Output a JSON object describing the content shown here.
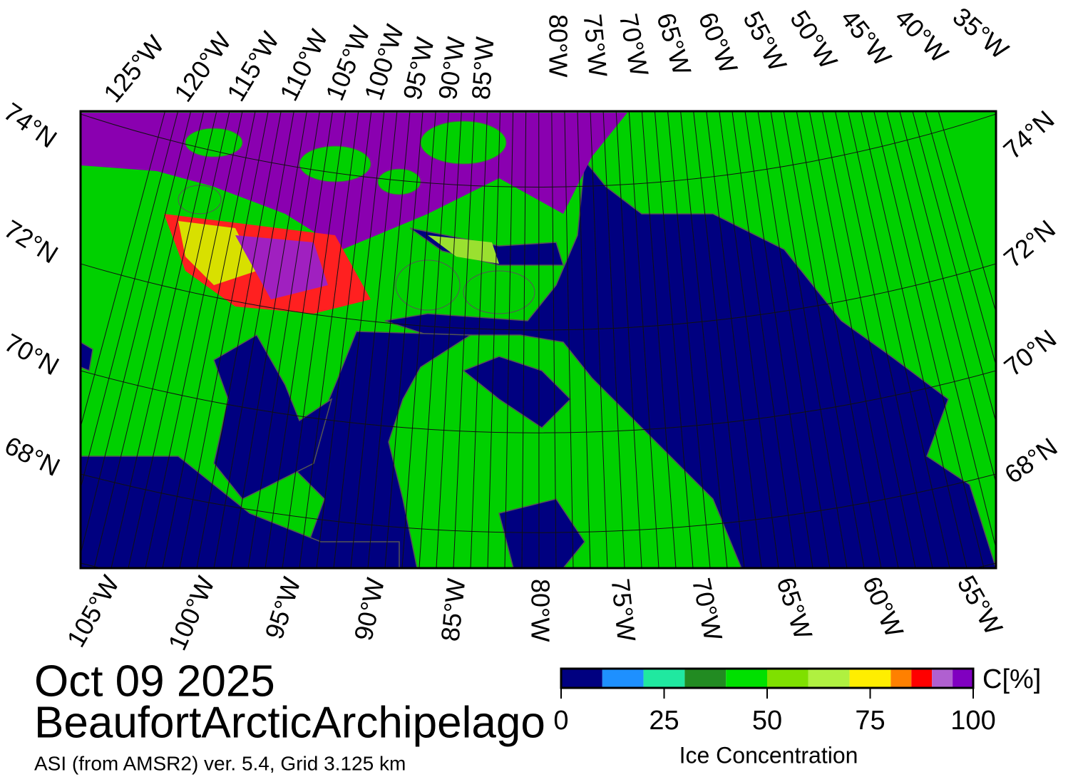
{
  "map": {
    "top_lon_labels": [
      "125°W",
      "120°W",
      "115°W",
      "110°W",
      "105°W",
      "100°W",
      "95°W",
      "90°W",
      "85°W",
      "80°W",
      "75°W",
      "70°W",
      "65°W",
      "60°W",
      "55°W",
      "50°W",
      "45°W",
      "40°W",
      "35°W"
    ],
    "bottom_lon_labels": [
      "105°W",
      "100°W",
      "95°W",
      "90°W",
      "85°W",
      "80°W",
      "75°W",
      "70°W",
      "65°W",
      "60°W",
      "55°W"
    ],
    "left_lat_labels": [
      "74°N",
      "72°N",
      "70°N",
      "68°N"
    ],
    "right_lat_labels": [
      "74°N",
      "72°N",
      "70°N",
      "68°N"
    ]
  },
  "date": "Oct 09 2025",
  "region": "BeaufortArcticArchipelago",
  "source": "ASI (from AMSR2) ver. 5.4,  Grid 3.125 km",
  "colorbar": {
    "bounds": [
      0,
      10,
      20,
      30,
      40,
      50,
      60,
      70,
      80,
      85,
      90,
      95,
      100
    ],
    "colors": [
      "#000080",
      "#1e90ff",
      "#20e8a0",
      "#228b22",
      "#00e000",
      "#7fe000",
      "#b0f040",
      "#ffee00",
      "#ff8000",
      "#ff0000",
      "#b060d0",
      "#8000c0"
    ],
    "ticks": [
      0,
      25,
      50,
      75,
      100
    ],
    "unit_label": "C[%]",
    "title": "Ice Concentration"
  }
}
